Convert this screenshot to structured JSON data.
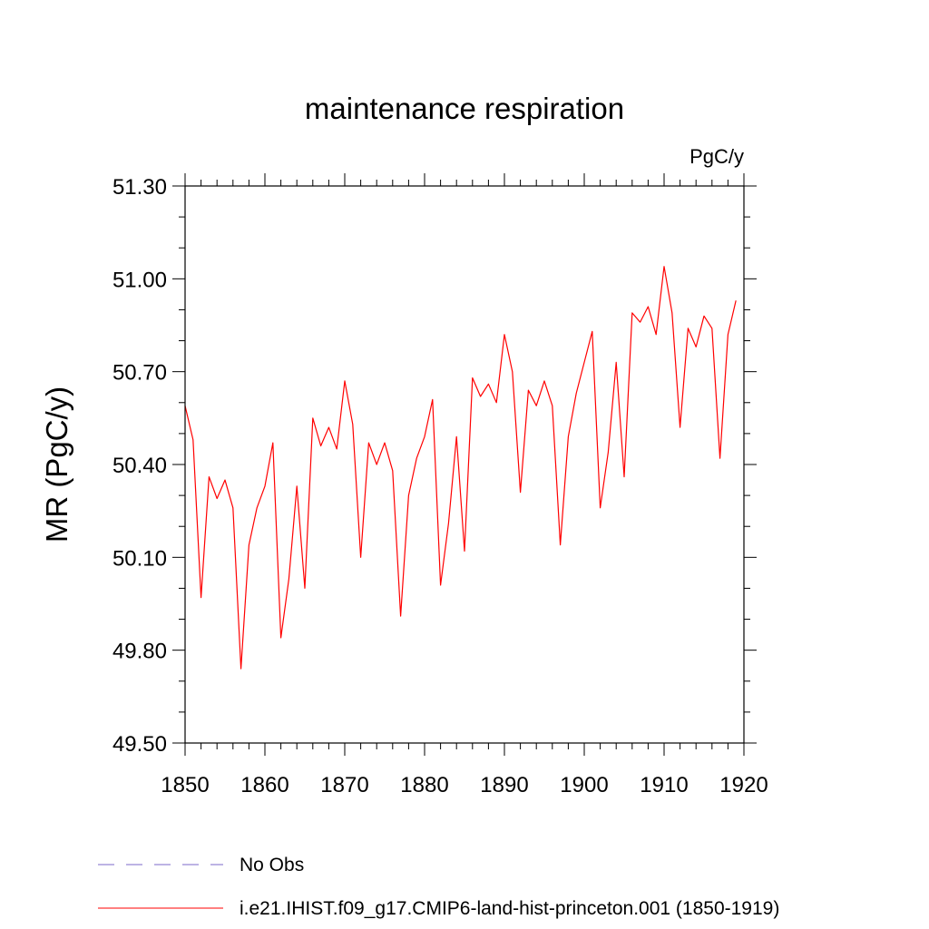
{
  "chart_data": {
    "type": "line",
    "title": "maintenance respiration",
    "units_label": "PgC/y",
    "ylabel": "MR  (PgC/y)",
    "xlabel": "",
    "xlim": [
      1850,
      1920
    ],
    "ylim": [
      49.5,
      51.3
    ],
    "x_ticks": [
      1850,
      1860,
      1870,
      1880,
      1890,
      1900,
      1910,
      1920
    ],
    "x_tick_labels": [
      "1850",
      "1860",
      "1870",
      "1880",
      "1890",
      "1900",
      "1910",
      "1920"
    ],
    "y_ticks": [
      49.5,
      49.8,
      50.1,
      50.4,
      50.7,
      51.0,
      51.3
    ],
    "y_tick_labels": [
      "49.50",
      "49.80",
      "50.10",
      "50.40",
      "50.70",
      "51.00",
      "51.30"
    ],
    "grid": false,
    "legend_position": "bottom",
    "series": [
      {
        "name": "No Obs",
        "color": "#7b68c8",
        "style": "dashed",
        "x": [],
        "values": []
      },
      {
        "name": "i.e21.IHIST.f09_g17.CMIP6-land-hist-princeton.001 (1850-1919)",
        "color": "#ff0000",
        "style": "solid",
        "x": [
          1850,
          1851,
          1852,
          1853,
          1854,
          1855,
          1856,
          1857,
          1858,
          1859,
          1860,
          1861,
          1862,
          1863,
          1864,
          1865,
          1866,
          1867,
          1868,
          1869,
          1870,
          1871,
          1872,
          1873,
          1874,
          1875,
          1876,
          1877,
          1878,
          1879,
          1880,
          1881,
          1882,
          1883,
          1884,
          1885,
          1886,
          1887,
          1888,
          1889,
          1890,
          1891,
          1892,
          1893,
          1894,
          1895,
          1896,
          1897,
          1898,
          1899,
          1900,
          1901,
          1902,
          1903,
          1904,
          1905,
          1906,
          1907,
          1908,
          1909,
          1910,
          1911,
          1912,
          1913,
          1914,
          1915,
          1916,
          1917,
          1918,
          1919
        ],
        "values": [
          50.59,
          50.48,
          49.97,
          50.36,
          50.29,
          50.35,
          50.26,
          49.74,
          50.14,
          50.26,
          50.33,
          50.47,
          49.84,
          50.03,
          50.33,
          50.0,
          50.55,
          50.46,
          50.52,
          50.45,
          50.67,
          50.53,
          50.1,
          50.47,
          50.4,
          50.47,
          50.38,
          49.91,
          50.3,
          50.42,
          50.49,
          50.61,
          50.01,
          50.21,
          50.49,
          50.12,
          50.68,
          50.62,
          50.66,
          50.6,
          50.82,
          50.7,
          50.31,
          50.64,
          50.59,
          50.67,
          50.59,
          50.14,
          50.49,
          50.63,
          50.73,
          50.83,
          50.26,
          50.44,
          50.73,
          50.36,
          50.89,
          50.86,
          50.91,
          50.82,
          51.04,
          50.89,
          50.52,
          50.84,
          50.78,
          50.88,
          50.84,
          50.42,
          50.82,
          50.93
        ]
      }
    ]
  }
}
